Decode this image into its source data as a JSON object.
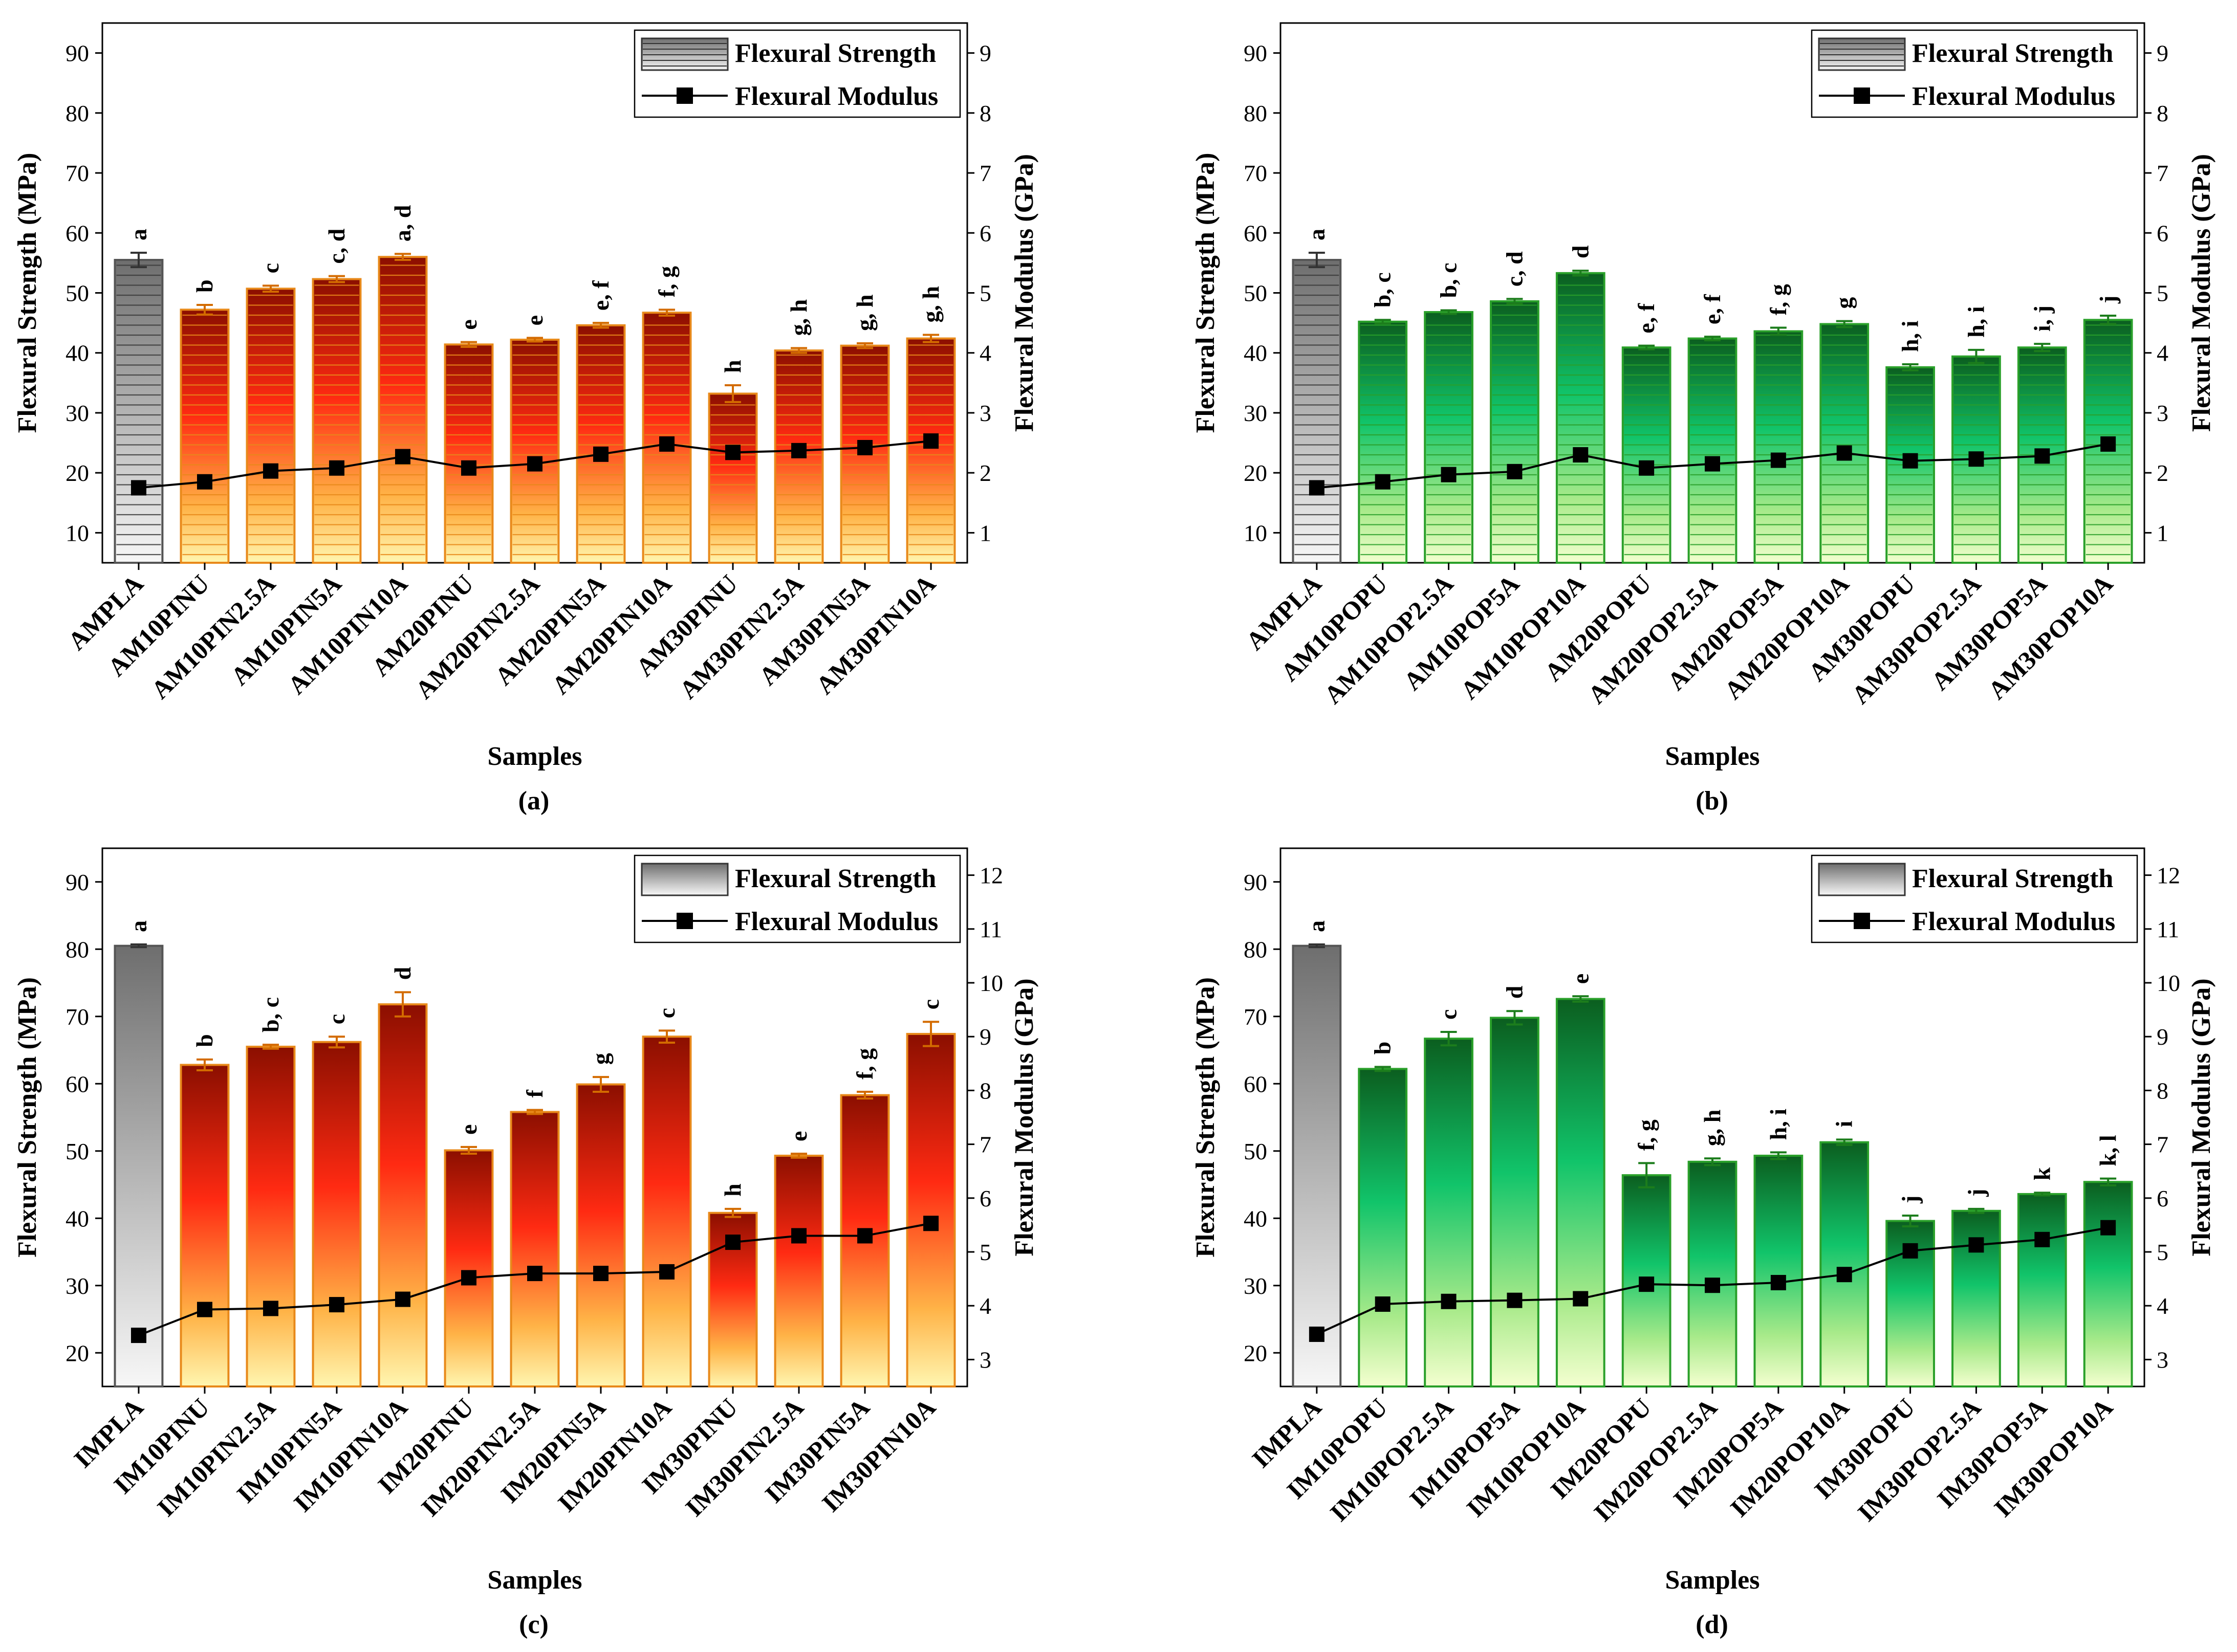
{
  "colors": {
    "orange_top": "#8b0f00",
    "orange_mid": "#ff2a12",
    "orange_low": "#ffb347",
    "orange_base": "#fff6b0",
    "orange_edge": "#e8891a",
    "green_top": "#0b5e1f",
    "green_mid": "#11c46a",
    "green_low": "#a8ea8a",
    "green_base": "#f4ffd0",
    "green_edge": "#2aa02a",
    "grey_top": "#6e6e6e",
    "grey_base": "#f7f7f7",
    "modulus_line": "#000000"
  },
  "chart_data": [
    {
      "panel_label": "(a)",
      "type": "bar",
      "title": "",
      "xlabel": "Samples",
      "ylabel": "Flexural Strength (MPa)",
      "y2label": "Flexural Modulus (GPa)",
      "legend": [
        "Flexural Strength",
        "Flexural Modulus"
      ],
      "legend_position": "top-right",
      "theme": "orange",
      "style": "striped",
      "ylim": [
        5,
        95
      ],
      "yticks": [
        10,
        20,
        30,
        40,
        50,
        60,
        70,
        80,
        90
      ],
      "y2lim": [
        0.5,
        9.5
      ],
      "y2ticks": [
        1,
        2,
        3,
        4,
        5,
        6,
        7,
        8,
        9
      ],
      "categories": [
        "AMPLA",
        "AM10PINU",
        "AM10PIN2.5A",
        "AM10PIN5A",
        "AM10PIN10A",
        "AM20PINU",
        "AM20PIN2.5A",
        "AM20PIN5A",
        "AM20PIN10A",
        "AM30PINU",
        "AM30PIN2.5A",
        "AM30PIN5A",
        "AM30PIN10A"
      ],
      "strength": [
        55.5,
        47.2,
        50.7,
        52.3,
        56.0,
        41.4,
        42.2,
        44.6,
        46.7,
        33.2,
        40.4,
        41.2,
        42.4
      ],
      "strength_err": [
        1.2,
        0.8,
        0.5,
        0.5,
        0.5,
        0.4,
        0.3,
        0.4,
        0.5,
        1.4,
        0.4,
        0.4,
        0.6
      ],
      "modulus": [
        1.75,
        1.85,
        2.03,
        2.08,
        2.27,
        2.08,
        2.15,
        2.31,
        2.48,
        2.34,
        2.37,
        2.42,
        2.53
      ],
      "significance": [
        "a",
        "b",
        "c",
        "c, d",
        "a, d",
        "e",
        "e",
        "e, f",
        "f, g",
        "h",
        "g, h",
        "g, h",
        "g, h"
      ]
    },
    {
      "panel_label": "(b)",
      "type": "bar",
      "title": "",
      "xlabel": "Samples",
      "ylabel": "Flexural Strength (MPa)",
      "y2label": "Flexural Modulus (GPa)",
      "legend": [
        "Flexural Strength",
        "Flexural Modulus"
      ],
      "legend_position": "top-right",
      "theme": "green",
      "style": "striped",
      "ylim": [
        5,
        95
      ],
      "yticks": [
        10,
        20,
        30,
        40,
        50,
        60,
        70,
        80,
        90
      ],
      "y2lim": [
        0.5,
        9.5
      ],
      "y2ticks": [
        1,
        2,
        3,
        4,
        5,
        6,
        7,
        8,
        9
      ],
      "categories": [
        "AMPLA",
        "AM10POPU",
        "AM10POP2.5A",
        "AM10POP5A",
        "AM10POP10A",
        "AM20POPU",
        "AM20POP2.5A",
        "AM20POP5A",
        "AM20POP10A",
        "AM30POPU",
        "AM30POP2.5A",
        "AM30POP5A",
        "AM30POP10A"
      ],
      "strength": [
        55.5,
        45.2,
        46.8,
        48.6,
        53.3,
        40.9,
        42.4,
        43.6,
        44.8,
        37.6,
        39.4,
        40.9,
        45.5
      ],
      "strength_err": [
        1.2,
        0.3,
        0.3,
        0.4,
        0.4,
        0.3,
        0.3,
        0.6,
        0.5,
        0.5,
        1.1,
        0.6,
        0.7
      ],
      "modulus": [
        1.75,
        1.85,
        1.97,
        2.02,
        2.3,
        2.08,
        2.15,
        2.21,
        2.33,
        2.2,
        2.23,
        2.28,
        2.48
      ],
      "significance": [
        "a",
        "b, c",
        "b, c",
        "c, d",
        "d",
        "e, f",
        "e, f",
        "f, g",
        "g",
        "h, i",
        "h, i",
        "i, j",
        "j"
      ]
    },
    {
      "panel_label": "(c)",
      "type": "bar",
      "title": "",
      "xlabel": "Samples",
      "ylabel": "Flexural Strength (MPa)",
      "y2label": "Flexural Modulus (GPa)",
      "legend": [
        "Flexural Strength",
        "Flexural Modulus"
      ],
      "legend_position": "top-right",
      "theme": "orange",
      "style": "smooth",
      "ylim": [
        15,
        95
      ],
      "yticks": [
        20,
        30,
        40,
        50,
        60,
        70,
        80,
        90
      ],
      "y2lim": [
        2.5,
        12.5
      ],
      "y2ticks": [
        3,
        4,
        5,
        6,
        7,
        8,
        9,
        10,
        11,
        12
      ],
      "categories": [
        "IMPLA",
        "IM10PINU",
        "IM10PIN2.5A",
        "IM10PIN5A",
        "IM10PIN10A",
        "IM20PINU",
        "IM20PIN2.5A",
        "IM20PIN5A",
        "IM20PIN10A",
        "IM30PINU",
        "IM30PIN2.5A",
        "IM30PIN5A",
        "IM30PIN10A"
      ],
      "strength": [
        80.5,
        62.8,
        65.5,
        66.2,
        71.8,
        50.1,
        55.8,
        59.9,
        67.0,
        40.8,
        49.3,
        58.3,
        67.4
      ],
      "strength_err": [
        0.2,
        0.8,
        0.3,
        0.8,
        1.8,
        0.5,
        0.3,
        1.1,
        0.9,
        0.6,
        0.3,
        0.5,
        1.8
      ],
      "modulus": [
        3.45,
        3.93,
        3.95,
        4.02,
        4.12,
        4.52,
        4.6,
        4.6,
        4.63,
        5.18,
        5.3,
        5.3,
        5.53
      ],
      "significance": [
        "a",
        "b",
        "b, c",
        "c",
        "d",
        "e",
        "f",
        "g",
        "c",
        "h",
        "e",
        "f, g",
        "c"
      ]
    },
    {
      "panel_label": "(d)",
      "type": "bar",
      "title": "",
      "xlabel": "Samples",
      "ylabel": "Flexural Strength (MPa)",
      "y2label": "Flexural Modulus (GPa)",
      "legend": [
        "Flexural Strength",
        "Flexural Modulus"
      ],
      "legend_position": "top-right",
      "theme": "green",
      "style": "smooth",
      "ylim": [
        15,
        95
      ],
      "yticks": [
        20,
        30,
        40,
        50,
        60,
        70,
        80,
        90
      ],
      "y2lim": [
        2.5,
        12.5
      ],
      "y2ticks": [
        3,
        4,
        5,
        6,
        7,
        8,
        9,
        10,
        11,
        12
      ],
      "categories": [
        "IMPLA",
        "IM10POPU",
        "IM10POP2.5A",
        "IM10POP5A",
        "IM10POP10A",
        "IM20POPU",
        "IM20POP2.5A",
        "IM20POP5A",
        "IM20POP10A",
        "IM30POPU",
        "IM30POP2.5A",
        "IM30POP5A",
        "IM30POP10A"
      ],
      "strength": [
        80.5,
        62.2,
        66.7,
        69.8,
        72.6,
        46.4,
        48.4,
        49.3,
        51.3,
        39.6,
        41.1,
        43.6,
        45.4
      ],
      "strength_err": [
        0.2,
        0.3,
        1.0,
        1.0,
        0.4,
        1.8,
        0.5,
        0.5,
        0.4,
        0.8,
        0.3,
        0.2,
        0.5
      ],
      "modulus": [
        3.47,
        4.03,
        4.08,
        4.1,
        4.13,
        4.4,
        4.38,
        4.43,
        4.58,
        5.02,
        5.13,
        5.23,
        5.45
      ],
      "significance": [
        "a",
        "b",
        "c",
        "d",
        "e",
        "f, g",
        "g, h",
        "h, i",
        "i",
        "j",
        "j",
        "k",
        "k, l"
      ]
    }
  ]
}
